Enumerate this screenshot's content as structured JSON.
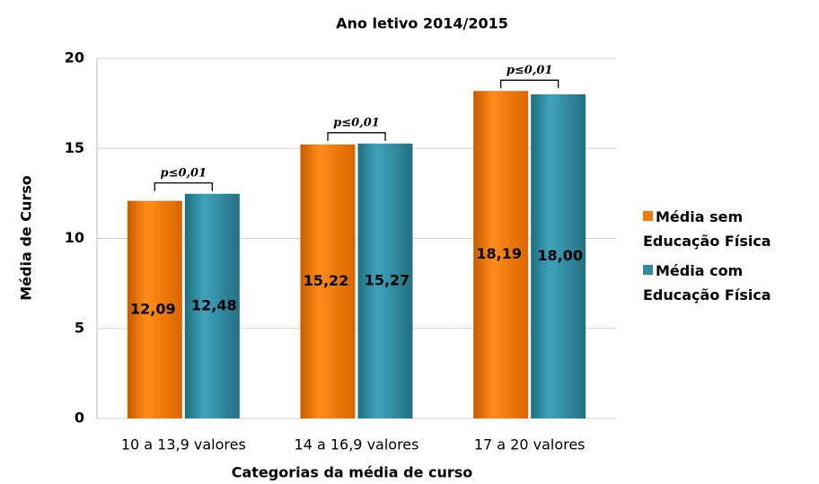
{
  "chart_data": {
    "type": "bar",
    "title": "Ano letivo 2014/2015",
    "x_label": "Categorias da média de curso",
    "y_label": "Média de Curso",
    "categories": [
      "10 a 13,9 valores",
      "14 a 16,9 valores",
      "17 a 20 valores"
    ],
    "series": [
      {
        "name": "Média sem Educação Física",
        "color": "#f07a10",
        "values": [
          12.09,
          15.22,
          18.19
        ],
        "value_labels": [
          "12,09",
          "15,22",
          "18,19"
        ]
      },
      {
        "name": "Média com Educação Física",
        "color": "#31899e",
        "values": [
          12.48,
          15.27,
          18.0
        ],
        "value_labels": [
          "12,48",
          "15,27",
          "18,00"
        ]
      }
    ],
    "annotations": [
      "p≤0,01",
      "p≤0,01",
      "p≤0,01"
    ],
    "ylim": [
      0,
      20
    ],
    "yticks": [
      0,
      5,
      10,
      15,
      20
    ],
    "grid": true,
    "legend": "right"
  }
}
